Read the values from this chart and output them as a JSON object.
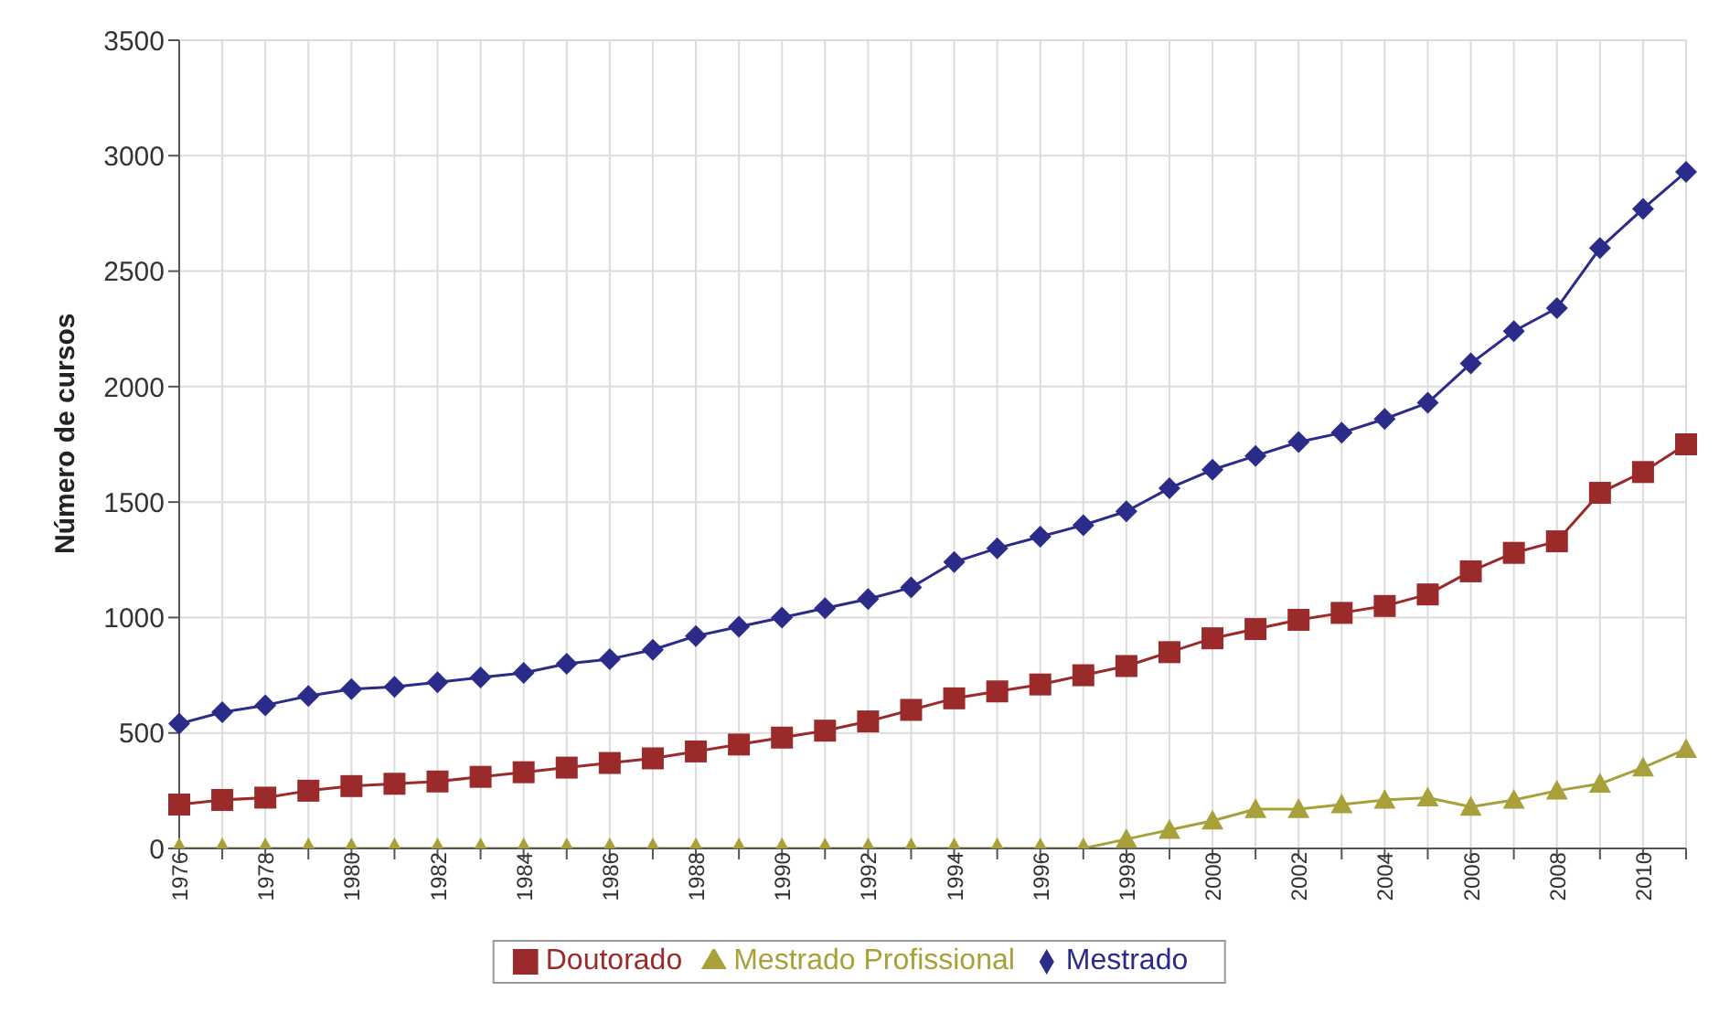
{
  "chart_data": {
    "type": "line",
    "ylabel": "Número de cursos",
    "categories": [
      "1976",
      null,
      "1978",
      null,
      "1980",
      null,
      "1982",
      null,
      "1984",
      null,
      "1986",
      null,
      "1988",
      null,
      "1990",
      null,
      "1992",
      null,
      "1994",
      null,
      "1996",
      null,
      "1998",
      null,
      "2000",
      null,
      "2002",
      null,
      "2004",
      null,
      "2006",
      null,
      "2008",
      null,
      "2010",
      null
    ],
    "series": [
      {
        "name": "Doutorado",
        "color": "#9b2a2a",
        "marker": "square",
        "values": [
          190,
          210,
          220,
          250,
          270,
          280,
          290,
          310,
          330,
          350,
          370,
          390,
          420,
          450,
          480,
          510,
          550,
          600,
          650,
          680,
          710,
          750,
          790,
          850,
          910,
          950,
          990,
          1020,
          1050,
          1100,
          1200,
          1280,
          1330,
          1540,
          1630,
          1750
        ]
      },
      {
        "name": "Mestrado Profissional",
        "color": "#a8a03a",
        "marker": "triangle",
        "values": [
          0,
          0,
          0,
          0,
          0,
          0,
          0,
          0,
          0,
          0,
          0,
          0,
          0,
          0,
          0,
          0,
          0,
          0,
          0,
          0,
          0,
          0,
          40,
          80,
          120,
          170,
          170,
          190,
          210,
          220,
          180,
          210,
          250,
          280,
          350,
          430
        ]
      },
      {
        "name": "Mestrado",
        "color": "#2b2b8a",
        "marker": "diamond",
        "values": [
          540,
          590,
          620,
          660,
          690,
          700,
          720,
          740,
          760,
          800,
          820,
          860,
          920,
          960,
          1000,
          1040,
          1080,
          1130,
          1240,
          1300,
          1350,
          1400,
          1460,
          1560,
          1640,
          1700,
          1760,
          1800,
          1860,
          1930,
          2100,
          2240,
          2340,
          2600,
          2770,
          2930
        ]
      }
    ],
    "ylim": [
      0,
      3500
    ],
    "yticks": [
      0,
      500,
      1000,
      1500,
      2000,
      2500,
      3000,
      3500
    ],
    "grid": true,
    "legend": "bottom",
    "line_style": "solid"
  }
}
